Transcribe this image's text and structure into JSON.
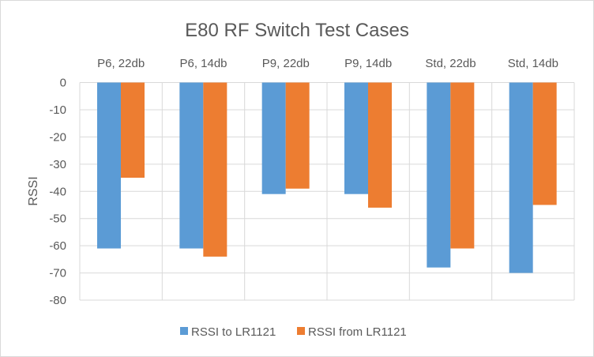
{
  "chart_data": {
    "type": "bar",
    "title": "E80 RF Switch Test Cases",
    "xlabel": "",
    "ylabel": "RSSI",
    "categories": [
      "P6, 22db",
      "P6, 14db",
      "P9, 22db",
      "P9, 14db",
      "Std, 22db",
      "Std, 14db"
    ],
    "series": [
      {
        "name": "RSSI to LR1121",
        "color": "#5b9bd5",
        "values": [
          -61,
          -61,
          -41,
          -41,
          -68,
          -70
        ]
      },
      {
        "name": "RSSI from LR1121",
        "color": "#ed7d31",
        "values": [
          -35,
          -64,
          -39,
          -46,
          -61,
          -45
        ]
      }
    ],
    "ylim": [
      -80,
      0
    ],
    "yticks": [
      0,
      -10,
      -20,
      -30,
      -40,
      -50,
      -60,
      -70,
      -80
    ],
    "category_labels_position": "top",
    "grid": true,
    "legend": "bottom"
  }
}
